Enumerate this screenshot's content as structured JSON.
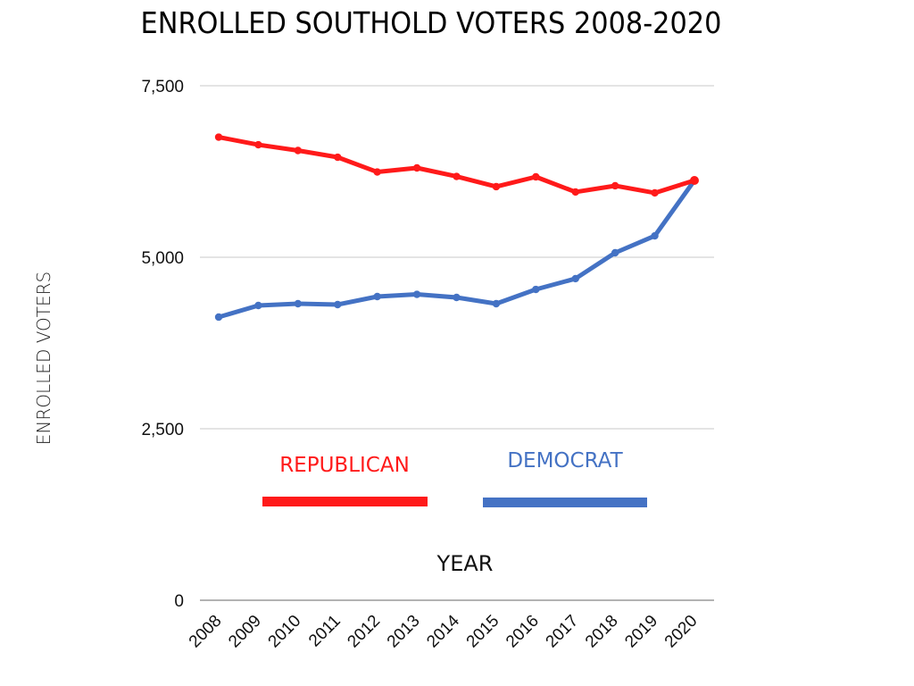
{
  "chart_data": {
    "type": "line",
    "title": "ENROLLED SOUTHOLD VOTERS 2008-2020",
    "xlabel": "YEAR",
    "ylabel": "ENROLLED VOTERS",
    "categories": [
      "2008",
      "2009",
      "2010",
      "2011",
      "2012",
      "2013",
      "2014",
      "2015",
      "2016",
      "2017",
      "2018",
      "2019",
      "2020"
    ],
    "ylim": [
      0,
      7500
    ],
    "yticks": [
      0,
      2500,
      5000,
      7500
    ],
    "ytick_labels": [
      "0",
      "2,500",
      "5,000",
      "7,500"
    ],
    "grid": true,
    "legend_position": "inside-bottom",
    "series": [
      {
        "name": "REPUBLICAN",
        "color": "#ff1a1a",
        "values": [
          6751,
          6640,
          6556,
          6458,
          6243,
          6302,
          6178,
          6029,
          6172,
          5951,
          6042,
          5938,
          6120
        ]
      },
      {
        "name": "DEMOCRAT",
        "color": "#4472c4",
        "values": [
          4128,
          4297,
          4323,
          4310,
          4427,
          4459,
          4414,
          4323,
          4531,
          4688,
          5065,
          5312,
          6120
        ]
      }
    ]
  }
}
